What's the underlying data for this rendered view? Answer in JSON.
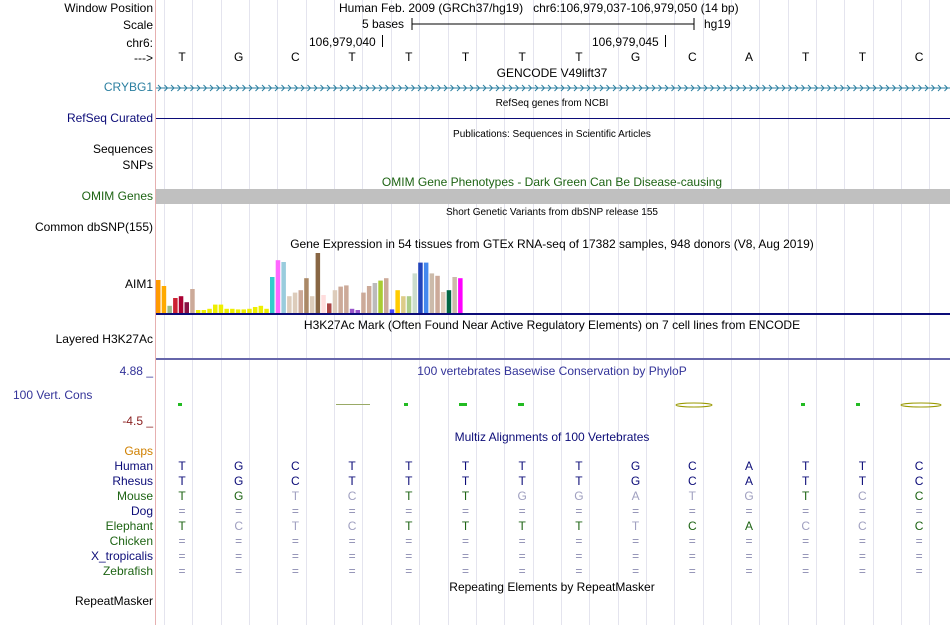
{
  "header": {
    "window_position_label": "Window Position",
    "scale_label": "Scale",
    "chrom_label": "chr6:",
    "strand_label": "--->",
    "title": "Human Feb. 2009 (GRCh37/hg19)   chr6:106,979,037-106,979,050 (14 bp)",
    "scale_text": "5 bases",
    "assembly": "hg19",
    "coord_1": "106,979,040",
    "coord_2": "106,979,045"
  },
  "bases": [
    "T",
    "G",
    "C",
    "T",
    "T",
    "T",
    "T",
    "T",
    "G",
    "C",
    "A",
    "T",
    "T",
    "C"
  ],
  "tracks": {
    "gencode": {
      "title": "GENCODE V49lift37",
      "label": "CRYBG1",
      "color": "#2b7fa0"
    },
    "refseq": {
      "title": "RefSeq genes from NCBI",
      "label": "RefSeq Curated",
      "color": "#0c0c78"
    },
    "publications": {
      "title": "Publications: Sequences in Scientific Articles",
      "label_1": "Sequences",
      "label_2": "SNPs"
    },
    "omim": {
      "title": "OMIM Gene Phenotypes - Dark Green Can Be Disease-causing",
      "label": "OMIM Genes",
      "color": "#1e6414"
    },
    "dbsnp": {
      "title": "Short Genetic Variants from dbSNP release 155",
      "label": "Common dbSNP(155)"
    },
    "gtex": {
      "title": "Gene Expression in 54 tissues from GTEx RNA-seq of 17382 samples, 948 donors (V8, Aug 2019)",
      "label": "AIM1",
      "bars": [
        {
          "color": "#ff9900",
          "v": 0.55
        },
        {
          "color": "#ffaa00",
          "v": 0.45
        },
        {
          "color": "#99bb88",
          "v": 0.12
        },
        {
          "color": "#cc2233",
          "v": 0.25
        },
        {
          "color": "#aa0033",
          "v": 0.28
        },
        {
          "color": "#881144",
          "v": 0.18
        },
        {
          "color": "#ccaa99",
          "v": 0.4
        },
        {
          "color": "#eeee00",
          "v": 0.05
        },
        {
          "color": "#eeee00",
          "v": 0.05
        },
        {
          "color": "#eeee00",
          "v": 0.07
        },
        {
          "color": "#eeee00",
          "v": 0.14
        },
        {
          "color": "#eeee00",
          "v": 0.14
        },
        {
          "color": "#eeee00",
          "v": 0.07
        },
        {
          "color": "#eeee00",
          "v": 0.07
        },
        {
          "color": "#eeee00",
          "v": 0.06
        },
        {
          "color": "#eeee00",
          "v": 0.06
        },
        {
          "color": "#eeee00",
          "v": 0.07
        },
        {
          "color": "#eeee00",
          "v": 0.1
        },
        {
          "color": "#eeee00",
          "v": 0.12
        },
        {
          "color": "#eeee00",
          "v": 0.07
        },
        {
          "color": "#33cccc",
          "v": 0.6
        },
        {
          "color": "#ff66ff",
          "v": 0.88
        },
        {
          "color": "#99ccdd",
          "v": 0.85
        },
        {
          "color": "#ddccbb",
          "v": 0.28
        },
        {
          "color": "#ddccbb",
          "v": 0.34
        },
        {
          "color": "#ccaa99",
          "v": 0.38
        },
        {
          "color": "#aa8866",
          "v": 0.58
        },
        {
          "color": "#ddccbb",
          "v": 0.28
        },
        {
          "color": "#886644",
          "v": 1.0
        },
        {
          "color": "#ffdddd",
          "v": 0.3
        },
        {
          "color": "#aa4444",
          "v": 0.16
        },
        {
          "color": "#ddccbb",
          "v": 0.38
        },
        {
          "color": "#ccaa99",
          "v": 0.44
        },
        {
          "color": "#ccaa99",
          "v": 0.46
        },
        {
          "color": "#9955cc",
          "v": 0.07
        },
        {
          "color": "#9955cc",
          "v": 0.05
        },
        {
          "color": "#ccaa99",
          "v": 0.34
        },
        {
          "color": "#ccaa99",
          "v": 0.45
        },
        {
          "color": "#bbbbbb",
          "v": 0.5
        },
        {
          "color": "#aacc33",
          "v": 0.54
        },
        {
          "color": "#ccaa99",
          "v": 0.58
        },
        {
          "color": "#4444ff",
          "v": 0.06
        },
        {
          "color": "#ffcc00",
          "v": 0.38
        },
        {
          "color": "#ddcc88",
          "v": 0.28
        },
        {
          "color": "#aacc88",
          "v": 0.28
        },
        {
          "color": "#ccddcc",
          "v": 0.66
        },
        {
          "color": "#2244bb",
          "v": 0.84
        },
        {
          "color": "#4488ee",
          "v": 0.84
        },
        {
          "color": "#ccbbaa",
          "v": 0.66
        },
        {
          "color": "#ccaa99",
          "v": 0.62
        },
        {
          "color": "#ddccbb",
          "v": 0.35
        },
        {
          "color": "#006644",
          "v": 0.38
        },
        {
          "color": "#ccbbaa",
          "v": 0.6
        },
        {
          "color": "#ff00ff",
          "v": 0.58
        }
      ]
    },
    "h3k27ac": {
      "title": "H3K27Ac Mark (Often Found Near Active Regulatory Elements) on 7 cell lines from ENCODE",
      "label": "Layered H3K27Ac"
    },
    "phylop": {
      "title": "100 vertebrates Basewise Conservation by PhyloP",
      "label": "100 Vert. Cons",
      "max": "4.88 _",
      "min": "-4.5 _",
      "color": "#333399",
      "min_color": "#8b2222"
    },
    "multiz": {
      "title": "Multiz Alignments of 100 Vertebrates",
      "gaps_label": "Gaps",
      "species": [
        {
          "name": "Human",
          "color": "#0c0c78",
          "row": [
            [
              "T",
              1
            ],
            [
              "G",
              1
            ],
            [
              "C",
              1
            ],
            [
              "T",
              1
            ],
            [
              "T",
              1
            ],
            [
              "T",
              1
            ],
            [
              "T",
              1
            ],
            [
              "T",
              1
            ],
            [
              "G",
              1
            ],
            [
              "C",
              1
            ],
            [
              "A",
              1
            ],
            [
              "T",
              1
            ],
            [
              "T",
              1
            ],
            [
              "C",
              1
            ]
          ]
        },
        {
          "name": "Rhesus",
          "color": "#0c0c78",
          "row": [
            [
              "T",
              1
            ],
            [
              "G",
              1
            ],
            [
              "C",
              1
            ],
            [
              "T",
              1
            ],
            [
              "T",
              1
            ],
            [
              "T",
              1
            ],
            [
              "T",
              1
            ],
            [
              "T",
              1
            ],
            [
              "G",
              1
            ],
            [
              "C",
              1
            ],
            [
              "A",
              1
            ],
            [
              "T",
              1
            ],
            [
              "T",
              1
            ],
            [
              "C",
              1
            ]
          ]
        },
        {
          "name": "Mouse",
          "color": "#1e6414",
          "row": [
            [
              "T",
              1
            ],
            [
              "G",
              1
            ],
            [
              "T",
              0
            ],
            [
              "C",
              0
            ],
            [
              "T",
              1
            ],
            [
              "T",
              1
            ],
            [
              "G",
              0
            ],
            [
              "G",
              0
            ],
            [
              "A",
              0
            ],
            [
              "T",
              0
            ],
            [
              "G",
              0
            ],
            [
              "T",
              1
            ],
            [
              "C",
              0
            ],
            [
              "C",
              1
            ]
          ]
        },
        {
          "name": "Dog",
          "color": "#0c0c78",
          "row": [
            [
              "=",
              0
            ],
            [
              "=",
              0
            ],
            [
              "=",
              0
            ],
            [
              "=",
              0
            ],
            [
              "=",
              0
            ],
            [
              "=",
              0
            ],
            [
              "=",
              0
            ],
            [
              "=",
              0
            ],
            [
              "=",
              0
            ],
            [
              "=",
              0
            ],
            [
              "=",
              0
            ],
            [
              "=",
              0
            ],
            [
              "=",
              0
            ],
            [
              "=",
              0
            ]
          ]
        },
        {
          "name": "Elephant",
          "color": "#1e6414",
          "row": [
            [
              "T",
              1
            ],
            [
              "C",
              0
            ],
            [
              "T",
              0
            ],
            [
              "C",
              0
            ],
            [
              "T",
              1
            ],
            [
              "T",
              1
            ],
            [
              "T",
              1
            ],
            [
              "T",
              1
            ],
            [
              "T",
              0
            ],
            [
              "C",
              1
            ],
            [
              "A",
              1
            ],
            [
              "C",
              0
            ],
            [
              "C",
              0
            ],
            [
              "C",
              1
            ]
          ]
        },
        {
          "name": "Chicken",
          "color": "#1e6414",
          "row": [
            [
              "=",
              0
            ],
            [
              "=",
              0
            ],
            [
              "=",
              0
            ],
            [
              "=",
              0
            ],
            [
              "=",
              0
            ],
            [
              "=",
              0
            ],
            [
              "=",
              0
            ],
            [
              "=",
              0
            ],
            [
              "=",
              0
            ],
            [
              "=",
              0
            ],
            [
              "=",
              0
            ],
            [
              "=",
              0
            ],
            [
              "=",
              0
            ],
            [
              "=",
              0
            ]
          ]
        },
        {
          "name": "X_tropicalis",
          "color": "#0c0c78",
          "row": [
            [
              "=",
              0
            ],
            [
              "=",
              0
            ],
            [
              "=",
              0
            ],
            [
              "=",
              0
            ],
            [
              "=",
              0
            ],
            [
              "=",
              0
            ],
            [
              "=",
              0
            ],
            [
              "=",
              0
            ],
            [
              "=",
              0
            ],
            [
              "=",
              0
            ],
            [
              "=",
              0
            ],
            [
              "=",
              0
            ],
            [
              "=",
              0
            ],
            [
              "=",
              0
            ]
          ]
        },
        {
          "name": "Zebrafish",
          "color": "#1e6414",
          "row": [
            [
              "=",
              0
            ],
            [
              "=",
              0
            ],
            [
              "=",
              0
            ],
            [
              "=",
              0
            ],
            [
              "=",
              0
            ],
            [
              "=",
              0
            ],
            [
              "=",
              0
            ],
            [
              "=",
              0
            ],
            [
              "=",
              0
            ],
            [
              "=",
              0
            ],
            [
              "=",
              0
            ],
            [
              "=",
              0
            ],
            [
              "=",
              0
            ],
            [
              "=",
              0
            ]
          ]
        }
      ]
    },
    "repeatmasker": {
      "title": "Repeating Elements by RepeatMasker",
      "label": "RepeatMasker"
    }
  },
  "colors": {
    "sidebar_line": "#e6b0b0",
    "omim_bar": "#c0c0c0",
    "gaps": "#d08000"
  }
}
